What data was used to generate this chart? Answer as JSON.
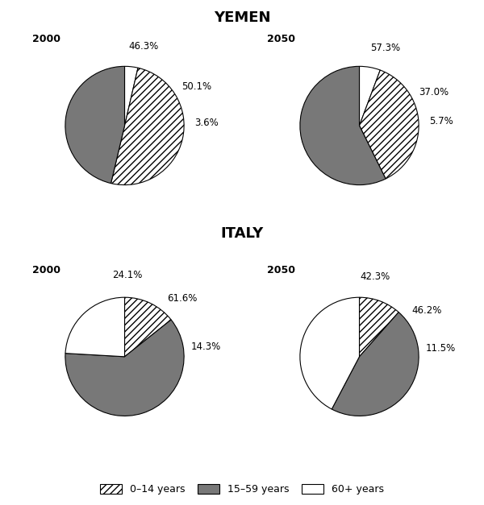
{
  "title_yemen": "YEMEN",
  "title_italy": "ITALY",
  "charts": {
    "yemen_2000": {
      "label": "2000",
      "values": [
        3.6,
        50.1,
        46.3
      ],
      "pct_labels": [
        "3.6%",
        "50.1%",
        "46.3%"
      ],
      "colors": [
        "white",
        "hatch",
        "dark"
      ],
      "startangle": 90
    },
    "yemen_2050": {
      "label": "2050",
      "values": [
        5.7,
        37.0,
        57.3
      ],
      "pct_labels": [
        "5.7%",
        "37.0%",
        "57.3%"
      ],
      "colors": [
        "white",
        "hatch",
        "dark"
      ],
      "startangle": 90
    },
    "italy_2000": {
      "label": "2000",
      "values": [
        14.3,
        61.6,
        24.1
      ],
      "pct_labels": [
        "14.3%",
        "61.6%",
        "24.1%"
      ],
      "colors": [
        "hatch",
        "dark",
        "white"
      ],
      "startangle": 90
    },
    "italy_2050": {
      "label": "2050",
      "values": [
        11.5,
        46.2,
        42.3
      ],
      "pct_labels": [
        "11.5%",
        "46.2%",
        "42.3%"
      ],
      "colors": [
        "hatch",
        "dark",
        "white"
      ],
      "startangle": 90
    }
  },
  "slice_colors": {
    "hatch": "white",
    "dark": "#787878",
    "white": "white"
  },
  "hatch_pattern": "////",
  "legend_labels": [
    "0–14 years",
    "15–59 years",
    "60+ years"
  ],
  "background_color": "white"
}
